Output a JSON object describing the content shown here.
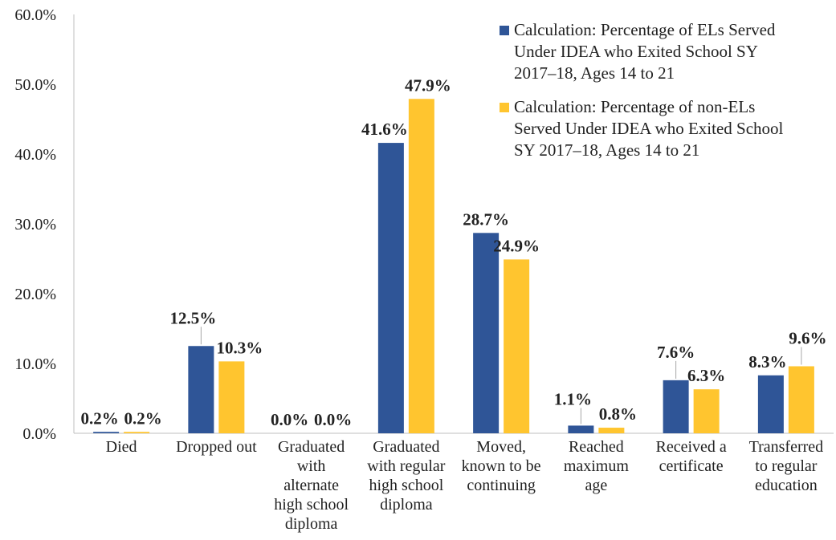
{
  "chart_data": {
    "type": "bar",
    "categories": [
      [
        "Died"
      ],
      [
        "Dropped out"
      ],
      [
        "Graduated",
        "with",
        "alternate",
        "high school",
        "diploma"
      ],
      [
        "Graduated",
        "with regular",
        "high school",
        "diploma"
      ],
      [
        "Moved,",
        "known to be",
        "continuing"
      ],
      [
        "Reached",
        "maximum",
        "age"
      ],
      [
        "Received a",
        "certificate"
      ],
      [
        "Transferred",
        "to regular",
        "education"
      ]
    ],
    "series": [
      {
        "name": [
          "Calculation: Percentage of ELs Served",
          "Under IDEA who Exited School SY",
          "2017–18, Ages 14 to 21"
        ],
        "color": "#2F5597",
        "values": [
          0.2,
          12.5,
          0.0,
          41.6,
          28.7,
          1.1,
          7.6,
          8.3
        ],
        "labels": [
          "0.2%",
          "12.5%",
          "0.0%",
          "41.6%",
          "28.7%",
          "1.1%",
          "7.6%",
          "8.3%"
        ]
      },
      {
        "name": [
          "Calculation: Percentage of non-ELs",
          "Served Under IDEA who Exited School",
          "SY 2017–18, Ages 14 to 21"
        ],
        "color": "#FFC52F",
        "values": [
          0.2,
          10.3,
          0.0,
          47.9,
          24.9,
          0.8,
          6.3,
          9.6
        ],
        "labels": [
          "0.2%",
          "10.3%",
          "0.0%",
          "47.9%",
          "24.9%",
          "0.8%",
          "6.3%",
          "9.6%"
        ]
      }
    ],
    "y_ticks": [
      "0.0%",
      "10.0%",
      "20.0%",
      "30.0%",
      "40.0%",
      "50.0%",
      "60.0%"
    ],
    "ylim": [
      0,
      60
    ],
    "legend_position": "top-right",
    "grid": false
  }
}
